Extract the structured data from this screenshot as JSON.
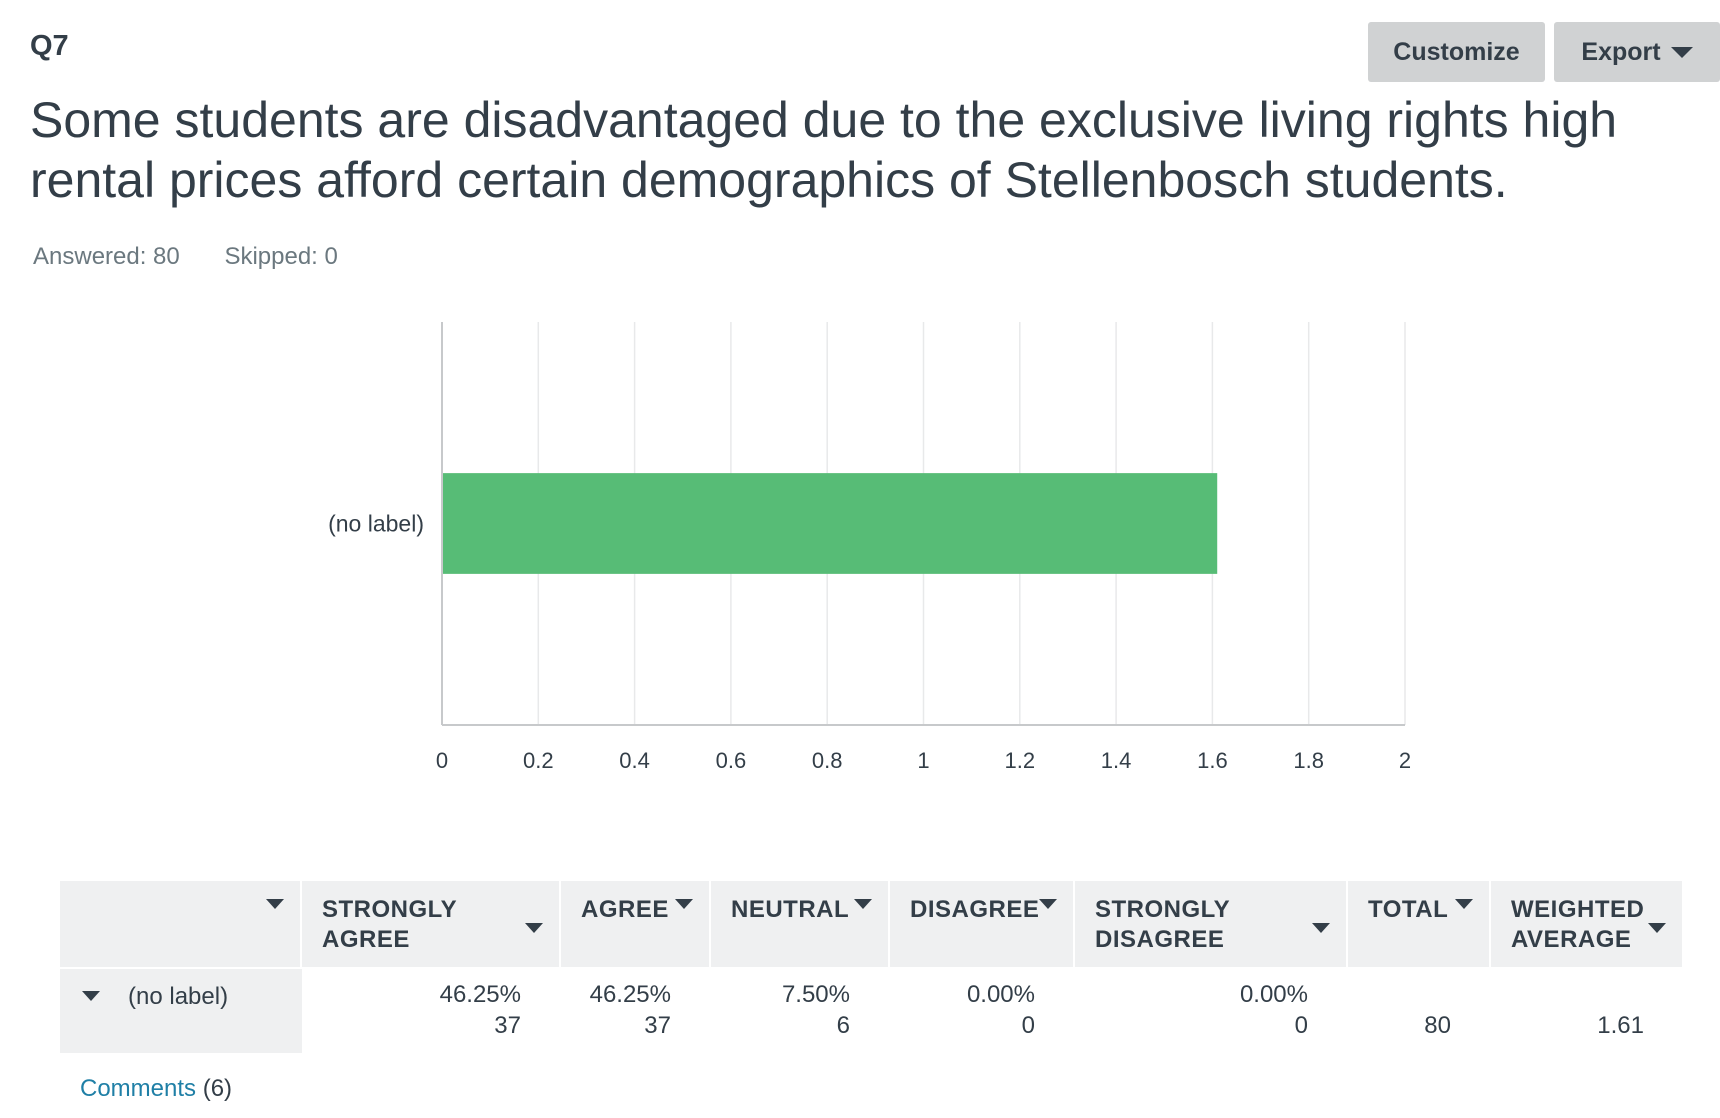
{
  "question": {
    "number": "Q7",
    "title": "Some students are disadvantaged due to the exclusive living rights high rental prices afford certain demographics of Stellenbosch students.",
    "answered": "Answered: 80",
    "skipped": "Skipped: 0"
  },
  "toolbar": {
    "customize_label": "Customize",
    "export_label": "Export"
  },
  "colors": {
    "bar": "#57bc76",
    "grid": "#e8e9ea",
    "axis": "#c7c9cb"
  },
  "chart_data": {
    "type": "bar",
    "orientation": "horizontal",
    "categories": [
      "(no label)"
    ],
    "values": [
      1.61
    ],
    "xlim": [
      0,
      2
    ],
    "xticks": [
      0,
      0.2,
      0.4,
      0.6,
      0.8,
      1,
      1.2,
      1.4,
      1.6,
      1.8,
      2
    ],
    "tick_labels": [
      "0",
      "0.2",
      "0.4",
      "0.6",
      "0.8",
      "1",
      "1.2",
      "1.4",
      "1.6",
      "1.8",
      "2"
    ],
    "grid": true,
    "title": "",
    "xlabel": "",
    "ylabel": ""
  },
  "table": {
    "headers": [
      "STRONGLY AGREE",
      "AGREE",
      "NEUTRAL",
      "DISAGREE",
      "STRONGLY DISAGREE",
      "TOTAL",
      "WEIGHTED AVERAGE"
    ],
    "header_lines": [
      [
        "STRONGLY",
        "AGREE"
      ],
      [
        "AGREE"
      ],
      [
        "NEUTRAL"
      ],
      [
        "DISAGREE"
      ],
      [
        "STRONGLY",
        "DISAGREE"
      ],
      [
        "TOTAL"
      ],
      [
        "WEIGHTED",
        "AVERAGE"
      ]
    ],
    "row": {
      "label": "(no label)",
      "percents": [
        "46.25%",
        "46.25%",
        "7.50%",
        "0.00%",
        "0.00%"
      ],
      "counts": [
        "37",
        "37",
        "6",
        "0",
        "0"
      ],
      "total": "80",
      "weighted_average": "1.61"
    }
  },
  "comments": {
    "link_label": "Comments",
    "count": "(6)"
  }
}
